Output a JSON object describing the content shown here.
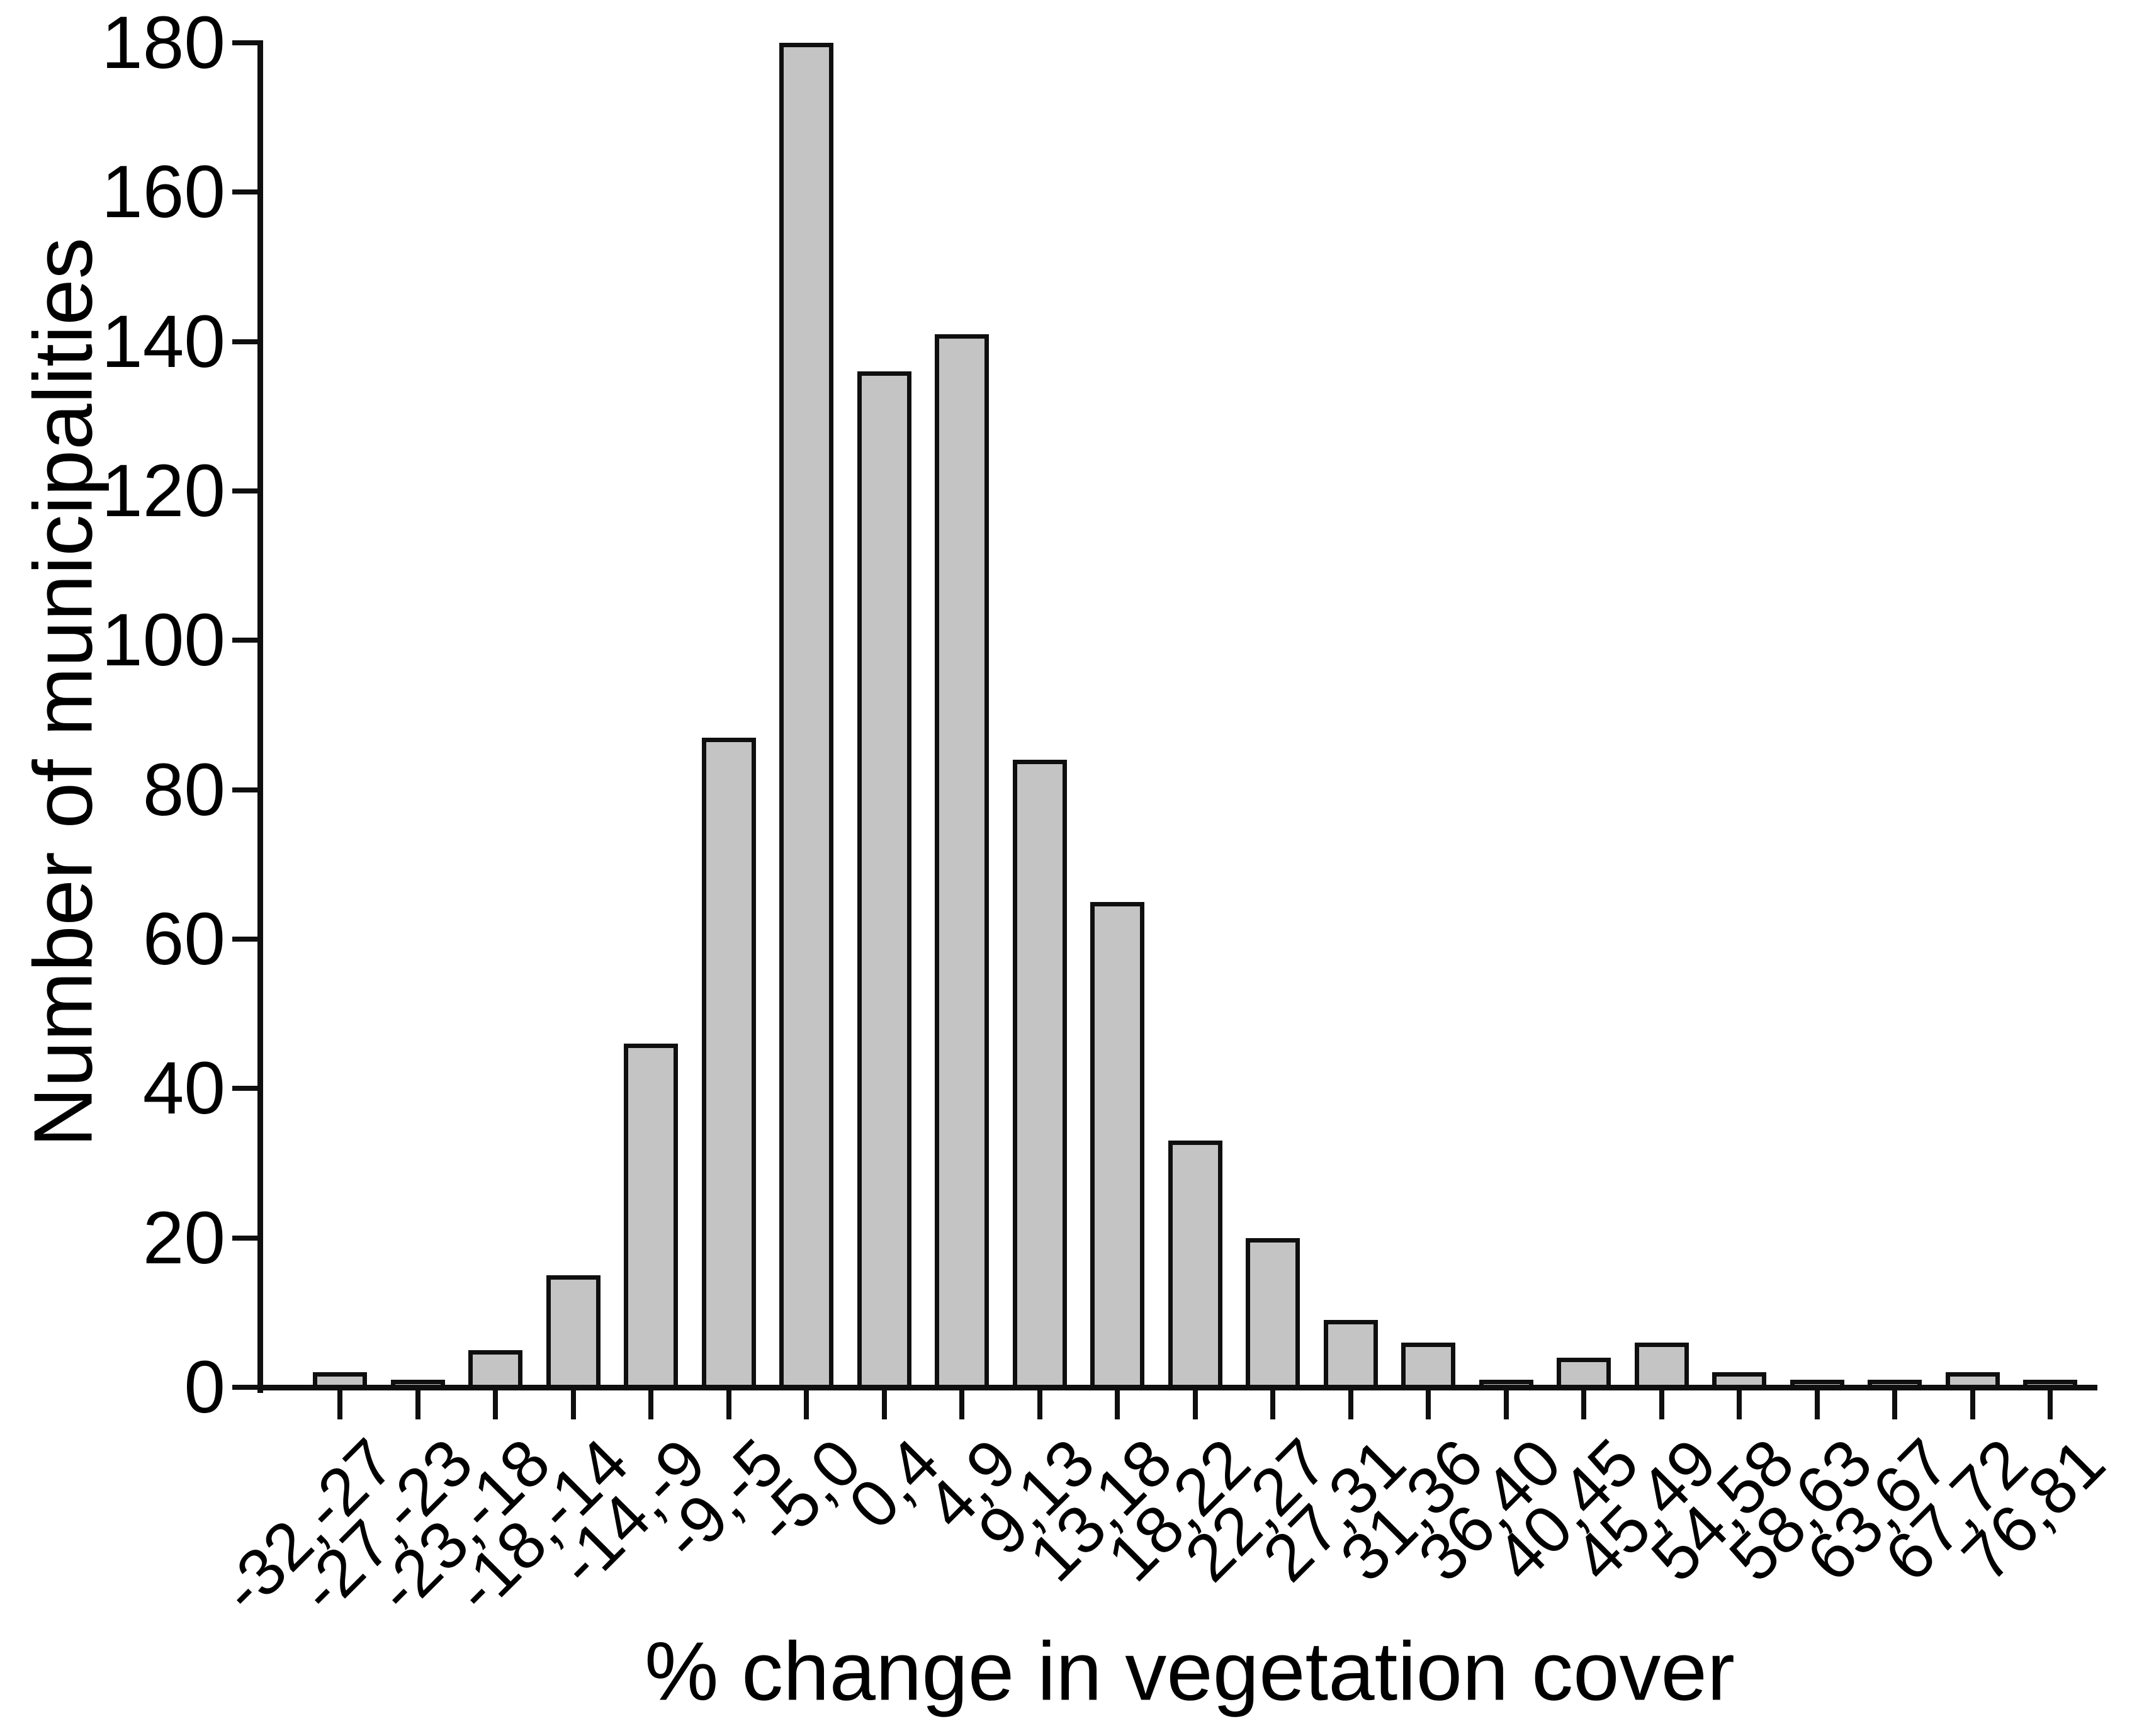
{
  "figure": {
    "background": "#ffffff",
    "text_color": "#000000"
  },
  "chart_data": {
    "type": "bar",
    "title": "",
    "xlabel": "% change in vegetation cover",
    "ylabel": "Number of municipalities",
    "categories": [
      "-32,-27",
      "-27,-23",
      "-23,-18",
      "-18,-14",
      "-14,-9",
      "-9,-5",
      "-5,0",
      "0,4",
      "4,9",
      "9,13",
      "13,18",
      "18,22",
      "22,27",
      "27,31",
      "31,36",
      "36,40",
      "40,45",
      "45,49",
      "54,58",
      "58,63",
      "63,67",
      "67,72",
      "76,81"
    ],
    "values": [
      2,
      1,
      5,
      15,
      46,
      87,
      180,
      136,
      141,
      84,
      65,
      33,
      20,
      9,
      6,
      1,
      4,
      6,
      2,
      1,
      1,
      2,
      1
    ],
    "ylim": [
      0,
      180
    ],
    "ytick_step": 20,
    "ytick_labels": [
      "0",
      "20",
      "40",
      "60",
      "80",
      "100",
      "120",
      "140",
      "160",
      "180"
    ],
    "xtick_label_rotation_deg": 45,
    "grid": false,
    "legend_position": "none",
    "bar_fill": "#c4c4c4",
    "bar_stroke": "#0f0f0f",
    "axis_color": "#0f0f0f"
  }
}
